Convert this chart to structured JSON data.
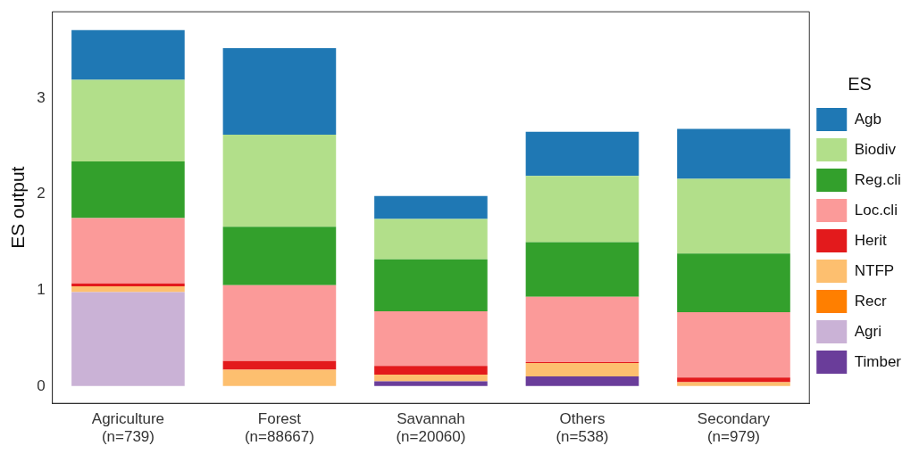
{
  "chart_data": {
    "type": "bar",
    "stacked": true,
    "ylabel": "ES output",
    "legend_title": "ES",
    "legend": "right",
    "grid": false,
    "categories": [
      "Agriculture\n(n=739)",
      "Forest\n(n=88667)",
      "Savannah\n(n=20060)",
      "Others\n(n=538)",
      "Secondary\n(n=979)"
    ],
    "ylim": [
      -0.18,
      3.9
    ],
    "yticks": [
      0,
      1,
      2,
      3
    ],
    "series": [
      {
        "name": "Timber",
        "color": "#6a3d9a",
        "values": [
          0,
          0,
          0.05,
          0.1,
          0
        ]
      },
      {
        "name": "Agri",
        "color": "#cab2d6",
        "values": [
          0.98,
          0,
          0,
          0,
          0
        ]
      },
      {
        "name": "Recr",
        "color": "#ff7f00",
        "values": [
          0,
          0,
          0,
          0,
          0
        ]
      },
      {
        "name": "NTFP",
        "color": "#fdbf6f",
        "values": [
          0.06,
          0.17,
          0.07,
          0.14,
          0.04
        ]
      },
      {
        "name": "Herit",
        "color": "#e31a1c",
        "values": [
          0.03,
          0.09,
          0.09,
          0.01,
          0.05
        ]
      },
      {
        "name": "Loc.cli",
        "color": "#fb9a99",
        "values": [
          0.68,
          0.79,
          0.57,
          0.68,
          0.68
        ]
      },
      {
        "name": "Reg.cli",
        "color": "#33a02c",
        "values": [
          0.59,
          0.61,
          0.54,
          0.57,
          0.61
        ]
      },
      {
        "name": "Biodiv",
        "color": "#b2df8a",
        "values": [
          0.85,
          0.96,
          0.42,
          0.69,
          0.78
        ]
      },
      {
        "name": "Agb",
        "color": "#1f78b4",
        "values": [
          0.52,
          0.9,
          0.24,
          0.46,
          0.52
        ]
      }
    ]
  }
}
